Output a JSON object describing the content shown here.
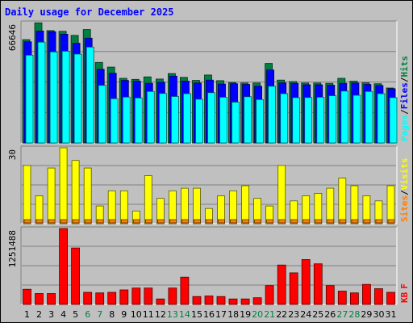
{
  "chart_data": {
    "type": "bar",
    "title": "Daily usage for December 2025",
    "x_labels": [
      "1",
      "2",
      "3",
      "4",
      "5",
      "6",
      "7",
      "8",
      "9",
      "10",
      "11",
      "12",
      "13",
      "14",
      "15",
      "16",
      "17",
      "18",
      "19",
      "20",
      "21",
      "22",
      "23",
      "24",
      "25",
      "26",
      "27",
      "28",
      "29",
      "30",
      "31"
    ],
    "weekend_days": [
      6,
      7,
      13,
      14,
      20,
      21,
      27,
      28
    ],
    "colors": {
      "hits": "#008040",
      "files": "#0000ff",
      "pages": "#00ffff",
      "visits": "#ffff00",
      "sites": "#ff8000",
      "kbytes": "#ff0000",
      "weekday_label": "#000000",
      "weekend_label": "#008040"
    },
    "panels": [
      {
        "id": "requests",
        "ymax": 66646,
        "ymax_label": "66646",
        "right_legend": [
          {
            "text": "Pages",
            "color": "#00ffff"
          },
          {
            "text": "/",
            "color": "#000000"
          },
          {
            "text": "Files",
            "color": "#0000ff"
          },
          {
            "text": "/",
            "color": "#000000"
          },
          {
            "text": "Hits",
            "color": "#008040"
          }
        ],
        "series": [
          {
            "name": "Hits",
            "color": "#008040",
            "values": [
              57200,
              66500,
              62200,
              61800,
              59600,
              62800,
              44600,
              42000,
              35800,
              35200,
              36600,
              35400,
              38400,
              36300,
              34600,
              37600,
              34500,
              33400,
              33200,
              33200,
              44000,
              34800,
              34000,
              33200,
              33200,
              33000,
              35800,
              34200,
              33300,
              32800,
              30400
            ]
          },
          {
            "name": "Files",
            "color": "#0000ff",
            "values": [
              56000,
              62000,
              61600,
              60200,
              55200,
              58000,
              40800,
              38600,
              34600,
              34200,
              33000,
              33600,
              37000,
              34200,
              33200,
              34800,
              32600,
              32800,
              32400,
              31400,
              40400,
              33300,
              33000,
              32200,
              32200,
              32000,
              33000,
              33200,
              32400,
              31800,
              30000
            ]
          },
          {
            "name": "Pages",
            "color": "#00ffff",
            "values": [
              48600,
              55800,
              50400,
              50800,
              49200,
              53100,
              31900,
              24500,
              25400,
              24900,
              28500,
              27400,
              25700,
              27300,
              24200,
              27800,
              25300,
              22600,
              25600,
              24000,
              31400,
              27300,
              25100,
              25200,
              25300,
              26100,
              28700,
              26400,
              28500,
              27300,
              25100
            ]
          }
        ]
      },
      {
        "id": "visits",
        "ymax": 30,
        "ymax_label": "30",
        "right_legend": [
          {
            "text": "Sites",
            "color": "#ff8000"
          },
          {
            "text": "/",
            "color": "#000000"
          },
          {
            "text": "Visits",
            "color": "#ffff00"
          }
        ],
        "series": [
          {
            "name": "Visits",
            "color": "#ffff00",
            "values": [
              23,
              11,
              22,
              30,
              25,
              22,
              7,
              13,
              13,
              5,
              19,
              10,
              13,
              14,
              14,
              6,
              11,
              13,
              15,
              10,
              7,
              23,
              9,
              11,
              12,
              14,
              18,
              15,
              11,
              9,
              15
            ]
          },
          {
            "name": "Sites",
            "color": "#ff8000",
            "values": [
              1,
              1,
              1,
              1,
              1,
              1,
              1,
              1,
              1,
              1,
              1,
              1,
              1,
              1,
              1,
              1,
              1,
              1,
              1,
              1,
              1,
              1,
              1,
              1,
              1,
              1,
              1,
              1,
              1,
              1,
              1
            ]
          }
        ]
      },
      {
        "id": "kbytes",
        "ymax": 1251488,
        "ymax_label": "1251488",
        "right_legend": [
          {
            "text": "KB",
            "color": "#ff0000"
          },
          {
            "text": "F",
            "color": "#ff0000"
          }
        ],
        "series": [
          {
            "name": "KBytes",
            "color": "#ff0000",
            "values": [
              250000,
              180000,
              180000,
              1251488,
              930000,
              200000,
              190000,
              200000,
              240000,
              270000,
              270000,
              90000,
              270000,
              450000,
              130000,
              140000,
              130000,
              90000,
              90000,
              110000,
              310000,
              650000,
              520000,
              740000,
              670000,
              310000,
              220000,
              190000,
              330000,
              260000,
              200000
            ]
          }
        ]
      }
    ]
  }
}
